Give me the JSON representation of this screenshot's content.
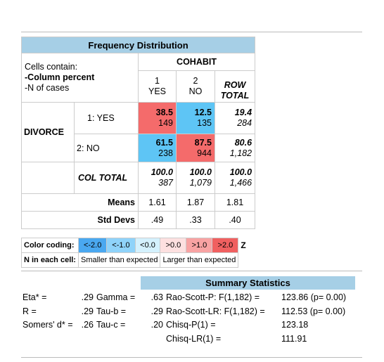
{
  "frequency_distribution": {
    "title": "Frequency Distribution",
    "cells_contain": [
      "Cells contain:",
      "-Column percent",
      "-N of cases"
    ],
    "column_variable": "COHABIT",
    "columns": [
      {
        "code": "1",
        "label": "YES"
      },
      {
        "code": "2",
        "label": "NO"
      },
      {
        "label": "ROW TOTAL"
      }
    ],
    "row_variable": "DIVORCE",
    "rows": [
      {
        "label": "1: YES",
        "cells": [
          {
            "percent": "38.5",
            "n": "149"
          },
          {
            "percent": "12.5",
            "n": "135"
          }
        ],
        "total": {
          "percent": "19.4",
          "n": "284"
        }
      },
      {
        "label": "2: NO",
        "cells": [
          {
            "percent": "61.5",
            "n": "238"
          },
          {
            "percent": "87.5",
            "n": "944"
          }
        ],
        "total": {
          "percent": "80.6",
          "n": "1,182"
        }
      }
    ],
    "col_total": {
      "label": "COL TOTAL",
      "cells": [
        {
          "percent": "100.0",
          "n": "387"
        },
        {
          "percent": "100.0",
          "n": "1,079"
        }
      ],
      "total": {
        "percent": "100.0",
        "n": "1,466"
      }
    },
    "means": {
      "label": "Means",
      "values": [
        "1.61",
        "1.87",
        "1.81"
      ]
    },
    "std_devs": {
      "label": "Std Devs",
      "values": [
        ".49",
        ".33",
        ".40"
      ]
    }
  },
  "color_coding": {
    "label": "Color coding:",
    "bins": [
      "<-2.0",
      "<-1.0",
      "<0.0",
      ">0.0",
      ">1.0",
      ">2.0"
    ],
    "statistic": "Z",
    "n_label": "N in each cell:",
    "smaller": "Smaller than expected",
    "larger": "Larger than expected"
  },
  "summary_statistics": {
    "title": "Summary Statistics",
    "rows": [
      {
        "a": {
          "label": "Eta* =",
          "value": ".29"
        },
        "b": {
          "label": "Gamma =",
          "value": ".63"
        },
        "c": {
          "label": "Rao-Scott-P: F(1,182) =",
          "value": "123.86 (p= 0.00)"
        }
      },
      {
        "a": {
          "label": "R =",
          "value": ".29"
        },
        "b": {
          "label": "Tau-b =",
          "value": ".29"
        },
        "c": {
          "label": "Rao-Scott-LR: F(1,182) =",
          "value": "112.53 (p= 0.00)"
        }
      },
      {
        "a": {
          "label": "Somers' d* =",
          "value": ".26"
        },
        "b": {
          "label": "Tau-c =",
          "value": ".20"
        },
        "c": {
          "label": "Chisq-P(1) =",
          "value": "123.18"
        }
      },
      {
        "c": {
          "label": "Chisq-LR(1) =",
          "value": "111.91"
        }
      }
    ]
  }
}
